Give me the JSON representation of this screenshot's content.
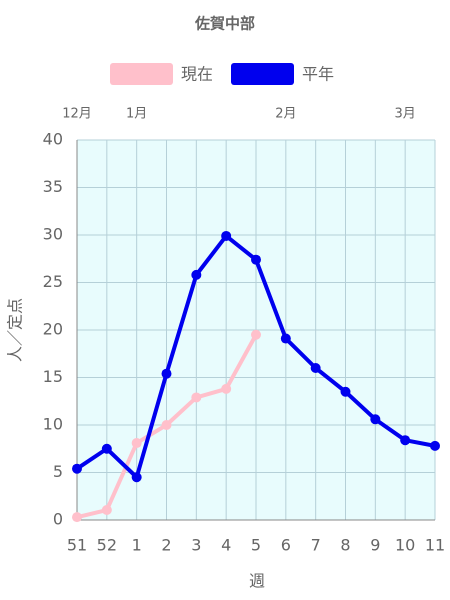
{
  "chart_data": {
    "type": "line",
    "title": "佐賀中部",
    "categories": [
      "51",
      "52",
      "1",
      "2",
      "3",
      "4",
      "5",
      "6",
      "7",
      "8",
      "9",
      "10",
      "11"
    ],
    "month_labels": [
      "12月",
      null,
      "1月",
      null,
      null,
      null,
      null,
      "2月",
      null,
      null,
      null,
      "3月",
      null
    ],
    "series": [
      {
        "name": "現在",
        "color": "#ffc0cb",
        "values": [
          0.3,
          1.05,
          8.1,
          10.0,
          12.9,
          13.8,
          19.5,
          null,
          null,
          null,
          null,
          null,
          null
        ]
      },
      {
        "name": "平年",
        "color": "#0000ee",
        "values": [
          5.4,
          7.5,
          4.5,
          15.4,
          25.8,
          29.9,
          27.4,
          19.1,
          16.0,
          13.5,
          10.6,
          8.4,
          7.8
        ]
      }
    ],
    "x_label": "週",
    "y_label": "人／定点",
    "ylim": [
      0,
      40
    ],
    "yticks": [
      0,
      5,
      10,
      15,
      20,
      25,
      30,
      35,
      40
    ],
    "grid": true,
    "background": "#e8fcfd"
  }
}
